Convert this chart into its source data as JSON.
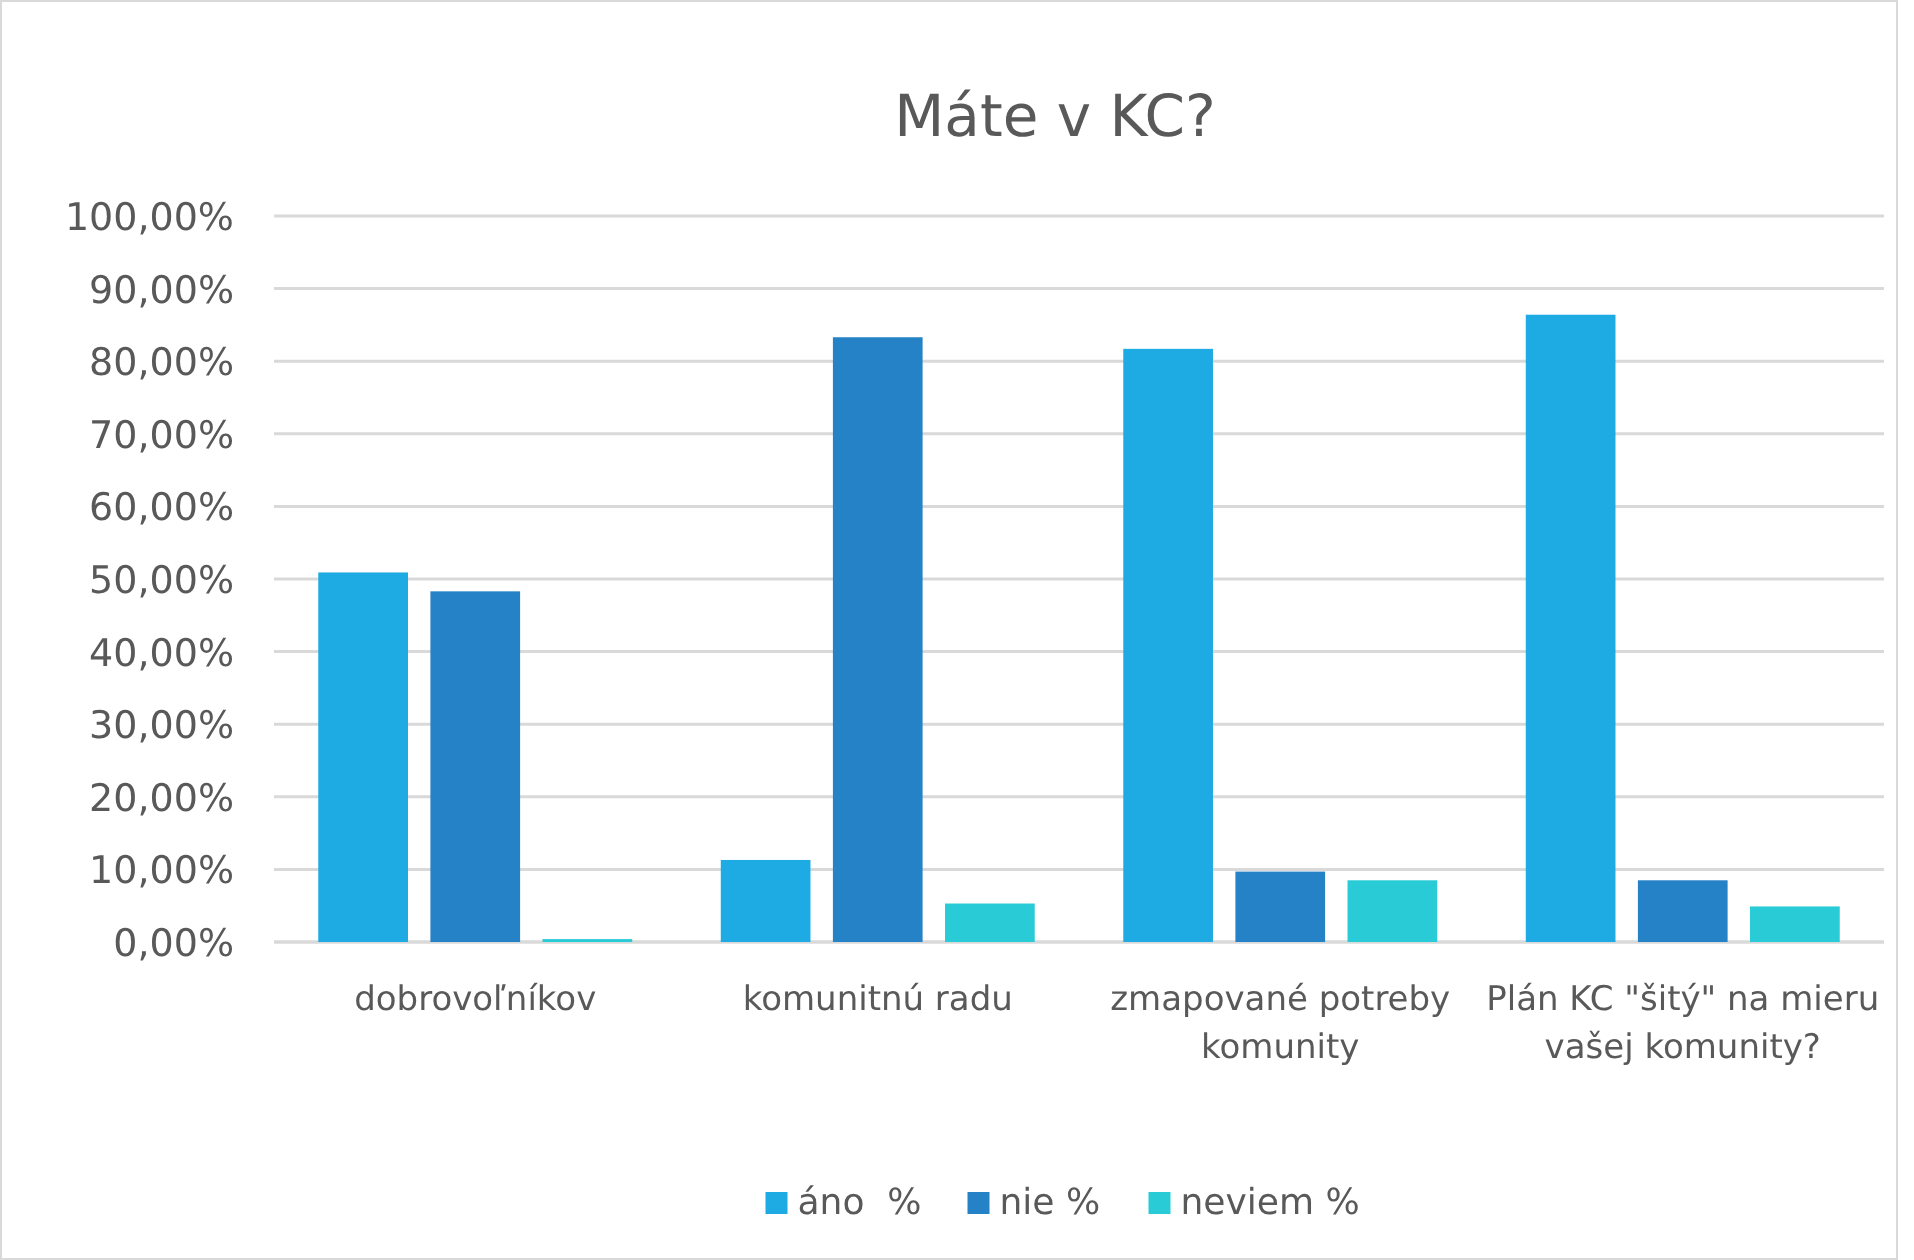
{
  "chart_data": {
    "type": "bar",
    "title": "Máte v KC?",
    "categories": [
      "dobrovoľníkov",
      "komunitnú radu",
      "zmapované potreby komunity",
      "Plán KC \"šitý\" na mieru vašej komunity?"
    ],
    "series": [
      {
        "name": "áno  %",
        "color": "#1eaae2",
        "values": [
          50.9,
          11.3,
          81.7,
          86.4
        ]
      },
      {
        "name": "nie %",
        "color": "#2682c6",
        "values": [
          48.3,
          83.3,
          9.7,
          8.5
        ]
      },
      {
        "name": "neviem %",
        "color": "#28cbd6",
        "values": [
          0.4,
          5.3,
          8.5,
          4.9
        ]
      }
    ],
    "ylim": [
      0,
      100
    ],
    "yticks": [
      {
        "value": 0,
        "label": "0,00%"
      },
      {
        "value": 10,
        "label": "10,00%"
      },
      {
        "value": 20,
        "label": "20,00%"
      },
      {
        "value": 30,
        "label": "30,00%"
      },
      {
        "value": 40,
        "label": "40,00%"
      },
      {
        "value": 50,
        "label": "50,00%"
      },
      {
        "value": 60,
        "label": "60,00%"
      },
      {
        "value": 70,
        "label": "70,00%"
      },
      {
        "value": 80,
        "label": "80,00%"
      },
      {
        "value": 90,
        "label": "90,00%"
      },
      {
        "value": 100,
        "label": "100,00%"
      }
    ],
    "grid": "y",
    "legend": "bottom"
  }
}
